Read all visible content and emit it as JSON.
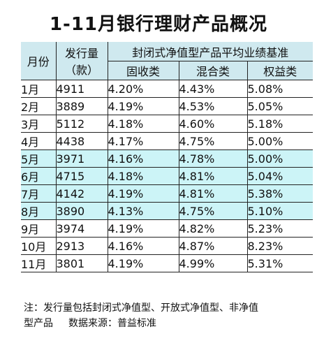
{
  "title": "1-11月银行理财产品概况",
  "headers": {
    "month": "月份",
    "issue_line1": "发行量",
    "issue_line2": "（款）",
    "group": "封闭式净值型产品平均业绩基准",
    "fixed": "固收类",
    "mixed": "混合类",
    "equity": "权益类"
  },
  "rows": [
    {
      "month": "1月",
      "issue": "4911",
      "fixed": "4.20%",
      "mixed": "4.43%",
      "equity": "5.08%"
    },
    {
      "month": "2月",
      "issue": "3889",
      "fixed": "4.19%",
      "mixed": "4.53%",
      "equity": "5.05%"
    },
    {
      "month": "3月",
      "issue": "5112",
      "fixed": "4.18%",
      "mixed": "4.60%",
      "equity": "5.18%"
    },
    {
      "month": "4月",
      "issue": "4438",
      "fixed": "4.17%",
      "mixed": "4.75%",
      "equity": "5.00%"
    },
    {
      "month": "5月",
      "issue": "3971",
      "fixed": "4.16%",
      "mixed": "4.78%",
      "equity": "5.00%"
    },
    {
      "month": "6月",
      "issue": "4715",
      "fixed": "4.18%",
      "mixed": "4.81%",
      "equity": "5.04%"
    },
    {
      "month": "7月",
      "issue": "4142",
      "fixed": "4.19%",
      "mixed": "4.81%",
      "equity": "5.38%"
    },
    {
      "month": "8月",
      "issue": "3890",
      "fixed": "4.13%",
      "mixed": "4.75%",
      "equity": "5.10%"
    },
    {
      "month": "9月",
      "issue": "3974",
      "fixed": "4.19%",
      "mixed": "4.82%",
      "equity": "5.23%"
    },
    {
      "month": "10月",
      "issue": "2913",
      "fixed": "4.16%",
      "mixed": "4.87%",
      "equity": "8.23%"
    },
    {
      "month": "11月",
      "issue": "3801",
      "fixed": "4.19%",
      "mixed": "4.99%",
      "equity": "5.31%"
    }
  ],
  "note": {
    "line1": "注：发行量包括封闭式净值型、开放式净值型、非净值",
    "line2_a": "型产品",
    "line2_b": "数据来源：普益标准"
  },
  "colors": {
    "header_bg": "#cfe9ef",
    "band_bg": "#ccf4f7",
    "rule": "#222222"
  }
}
